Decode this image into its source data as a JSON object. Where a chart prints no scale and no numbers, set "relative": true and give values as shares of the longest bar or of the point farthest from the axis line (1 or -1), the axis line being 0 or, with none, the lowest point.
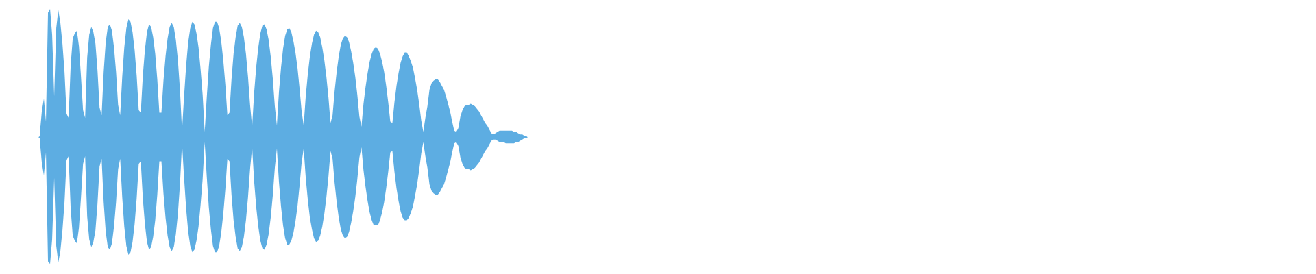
{
  "chart_data": {
    "type": "area",
    "relative": true,
    "categories": [
      null,
      null,
      null,
      null,
      null,
      null,
      null,
      null,
      null,
      null,
      null,
      null,
      null,
      null,
      null,
      null,
      null,
      null,
      null,
      null,
      null,
      null,
      null,
      null,
      null,
      null,
      null,
      null,
      null,
      null,
      null,
      null,
      null,
      null,
      null,
      null,
      null,
      null,
      null,
      null,
      null,
      null,
      null,
      null,
      null,
      null,
      null,
      null,
      null,
      null,
      null,
      null,
      null,
      null,
      null,
      null,
      null,
      null,
      null,
      null,
      null,
      null,
      null,
      null,
      null,
      null,
      null,
      null,
      null,
      null,
      null,
      null,
      null,
      null,
      null,
      null,
      null,
      null,
      null,
      null,
      null,
      null,
      null,
      null,
      null,
      null,
      null,
      null,
      null,
      null,
      null,
      null,
      null,
      null,
      null,
      null,
      null,
      null,
      null,
      null,
      null,
      null,
      null,
      null,
      null,
      null,
      null,
      null,
      null,
      null,
      null,
      null,
      null,
      null,
      null,
      null,
      null,
      null,
      null,
      null,
      null,
      null,
      null,
      null,
      null,
      null,
      null,
      null,
      null,
      null,
      null,
      null,
      null,
      null,
      null,
      null,
      null,
      null,
      null,
      null,
      null,
      null,
      null,
      null,
      null,
      null,
      null,
      null,
      null,
      null,
      null,
      null,
      null,
      null,
      null,
      null,
      null,
      null,
      null,
      null,
      null,
      null,
      null,
      null,
      null,
      null,
      null,
      null,
      null,
      null,
      null,
      null,
      null,
      null,
      null,
      null,
      null,
      null,
      null,
      null,
      null,
      null,
      null,
      null,
      null,
      null,
      null,
      null,
      null,
      null,
      null,
      null,
      null,
      null,
      null,
      null,
      null,
      null,
      null,
      null,
      null,
      null,
      null,
      null,
      null,
      null,
      null,
      null,
      null,
      null,
      null,
      null,
      null,
      null,
      null,
      null,
      null,
      null,
      null,
      null,
      null,
      null,
      null,
      null,
      null,
      null,
      null,
      null,
      null,
      null,
      null,
      null,
      null,
      null,
      null,
      null,
      null
    ],
    "series": [
      {
        "color": "#5dade2",
        "values": [
          0.02,
          0.2,
          0.3,
          0.12,
          0.97,
          1,
          0.8,
          0.32,
          0.85,
          0.99,
          0.89,
          0.73,
          0.51,
          0.18,
          0.15,
          0.56,
          0.77,
          0.81,
          0.83,
          0.71,
          0.47,
          0.21,
          0.15,
          0.62,
          0.8,
          0.86,
          0.82,
          0.73,
          0.52,
          0.23,
          0.17,
          0.51,
          0.74,
          0.86,
          0.88,
          0.83,
          0.7,
          0.51,
          0.25,
          0.17,
          0.47,
          0.7,
          0.85,
          0.92,
          0.9,
          0.82,
          0.68,
          0.48,
          0.21,
          0.19,
          0.48,
          0.68,
          0.82,
          0.88,
          0.86,
          0.78,
          0.65,
          0.45,
          0.19,
          0.19,
          0.44,
          0.63,
          0.77,
          0.86,
          0.89,
          0.86,
          0.76,
          0.6,
          0.37,
          0.05,
          0.32,
          0.56,
          0.74,
          0.85,
          0.9,
          0.88,
          0.81,
          0.7,
          0.53,
          0.33,
          0.04,
          0.31,
          0.55,
          0.72,
          0.85,
          0.9,
          0.9,
          0.85,
          0.75,
          0.6,
          0.41,
          0.17,
          0.19,
          0.45,
          0.65,
          0.78,
          0.87,
          0.89,
          0.86,
          0.78,
          0.65,
          0.47,
          0.25,
          0.08,
          0.35,
          0.55,
          0.7,
          0.81,
          0.87,
          0.88,
          0.84,
          0.76,
          0.63,
          0.46,
          0.24,
          0.09,
          0.35,
          0.54,
          0.69,
          0.79,
          0.84,
          0.85,
          0.82,
          0.75,
          0.66,
          0.54,
          0.38,
          0.2,
          0.09,
          0.32,
          0.49,
          0.63,
          0.73,
          0.8,
          0.83,
          0.82,
          0.78,
          0.7,
          0.6,
          0.47,
          0.31,
          0.11,
          0.17,
          0.36,
          0.51,
          0.63,
          0.72,
          0.77,
          0.79,
          0.78,
          0.74,
          0.67,
          0.58,
          0.47,
          0.33,
          0.16,
          0.08,
          0.26,
          0.39,
          0.5,
          0.59,
          0.65,
          0.69,
          0.7,
          0.69,
          0.65,
          0.59,
          0.51,
          0.4,
          0.27,
          0.12,
          0.11,
          0.27,
          0.4,
          0.5,
          0.58,
          0.63,
          0.66,
          0.66,
          0.63,
          0.59,
          0.54,
          0.46,
          0.37,
          0.26,
          0.13,
          0.04,
          0.15,
          0.24,
          0.37,
          0.42,
          0.44,
          0.45,
          0.45,
          0.43,
          0.4,
          0.37,
          0.32,
          0.26,
          0.2,
          0.12,
          0.05,
          0.04,
          0.07,
          0.16,
          0.21,
          0.24,
          0.25,
          0.25,
          0.26,
          0.25,
          0.24,
          0.22,
          0.2,
          0.17,
          0.14,
          0.11,
          0.09,
          0.06,
          0.03,
          0.02,
          0.03,
          0.04,
          0.05,
          0.05,
          0.05,
          0.05,
          0.05,
          0.05,
          0.05,
          0.04,
          0.04,
          0.03,
          0.02,
          0.02,
          0.01,
          0
        ]
      },
      {
        "color": "#5dade2",
        "values": [
          -0.02,
          -0.2,
          -0.3,
          -0.12,
          -0.97,
          -0.99,
          -0.8,
          -0.32,
          -0.85,
          -0.98,
          -0.89,
          -0.73,
          -0.51,
          -0.18,
          -0.15,
          -0.56,
          -0.77,
          -0.81,
          -0.83,
          -0.71,
          -0.47,
          -0.21,
          -0.15,
          -0.62,
          -0.8,
          -0.86,
          -0.82,
          -0.73,
          -0.52,
          -0.23,
          -0.17,
          -0.51,
          -0.74,
          -0.86,
          -0.88,
          -0.83,
          -0.7,
          -0.51,
          -0.25,
          -0.17,
          -0.47,
          -0.7,
          -0.85,
          -0.92,
          -0.9,
          -0.82,
          -0.68,
          -0.48,
          -0.21,
          -0.19,
          -0.48,
          -0.68,
          -0.82,
          -0.88,
          -0.86,
          -0.78,
          -0.65,
          -0.45,
          -0.19,
          -0.19,
          -0.44,
          -0.63,
          -0.77,
          -0.86,
          -0.89,
          -0.86,
          -0.76,
          -0.6,
          -0.37,
          -0.05,
          -0.32,
          -0.56,
          -0.74,
          -0.85,
          -0.9,
          -0.88,
          -0.81,
          -0.7,
          -0.53,
          -0.33,
          -0.04,
          -0.31,
          -0.55,
          -0.72,
          -0.85,
          -0.9,
          -0.9,
          -0.85,
          -0.75,
          -0.6,
          -0.41,
          -0.17,
          -0.19,
          -0.45,
          -0.65,
          -0.78,
          -0.87,
          -0.89,
          -0.86,
          -0.78,
          -0.65,
          -0.47,
          -0.25,
          -0.08,
          -0.35,
          -0.55,
          -0.7,
          -0.81,
          -0.87,
          -0.88,
          -0.84,
          -0.76,
          -0.63,
          -0.46,
          -0.24,
          -0.09,
          -0.35,
          -0.54,
          -0.69,
          -0.79,
          -0.84,
          -0.84,
          -0.81,
          -0.75,
          -0.66,
          -0.54,
          -0.38,
          -0.2,
          -0.09,
          -0.32,
          -0.49,
          -0.63,
          -0.72,
          -0.79,
          -0.82,
          -0.81,
          -0.77,
          -0.7,
          -0.6,
          -0.47,
          -0.31,
          -0.11,
          -0.17,
          -0.36,
          -0.51,
          -0.63,
          -0.72,
          -0.77,
          -0.79,
          -0.78,
          -0.74,
          -0.67,
          -0.58,
          -0.47,
          -0.33,
          -0.16,
          -0.08,
          -0.26,
          -0.39,
          -0.5,
          -0.59,
          -0.65,
          -0.69,
          -0.69,
          -0.69,
          -0.65,
          -0.59,
          -0.51,
          -0.4,
          -0.27,
          -0.12,
          -0.11,
          -0.27,
          -0.4,
          -0.5,
          -0.58,
          -0.63,
          -0.65,
          -0.65,
          -0.63,
          -0.59,
          -0.54,
          -0.46,
          -0.37,
          -0.26,
          -0.13,
          -0.04,
          -0.15,
          -0.24,
          -0.37,
          -0.42,
          -0.44,
          -0.45,
          -0.45,
          -0.43,
          -0.4,
          -0.37,
          -0.32,
          -0.26,
          -0.2,
          -0.12,
          -0.05,
          -0.04,
          -0.07,
          -0.16,
          -0.21,
          -0.24,
          -0.25,
          -0.25,
          -0.26,
          -0.25,
          -0.24,
          -0.22,
          -0.2,
          -0.17,
          -0.14,
          -0.11,
          -0.09,
          -0.06,
          -0.03,
          -0.02,
          -0.02,
          -0.03,
          -0.04,
          -0.04,
          -0.04,
          -0.05,
          -0.05,
          -0.05,
          -0.05,
          -0.05,
          -0.04,
          -0.04,
          -0.03,
          -0.02,
          -0.01,
          0
        ]
      }
    ]
  }
}
